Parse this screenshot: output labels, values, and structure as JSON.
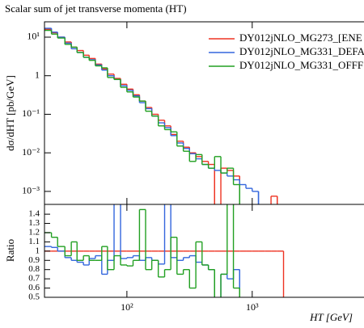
{
  "chart_data": {
    "type": "histogram",
    "title": "Scalar sum of jet transverse momenta (HT)",
    "xlabel": "HT [GeV]",
    "ylabel": "dσ/dHT [pb/GeV]",
    "x_log": true,
    "y_log": true,
    "legend": "upper right",
    "xlim": [
      22,
      40000
    ],
    "ylim": [
      0.00046,
      25
    ],
    "xticks": [
      {
        "value": 100,
        "label": "10²"
      },
      {
        "value": 1000,
        "label": "10³"
      }
    ],
    "yticks": [
      {
        "value": 0.001,
        "label": "10⁻³"
      },
      {
        "value": 0.01,
        "label": "10⁻²"
      },
      {
        "value": 0.1,
        "label": "10⁻¹"
      },
      1,
      {
        "value": 10,
        "label": "10¹"
      }
    ],
    "bins": [
      22,
      25,
      28,
      32,
      36,
      40,
      45,
      50,
      56,
      63,
      70,
      79,
      89,
      100,
      112,
      126,
      141,
      158,
      178,
      200,
      224,
      251,
      282,
      316,
      355,
      398,
      447,
      501,
      562,
      631,
      708,
      794,
      891,
      1000,
      1122,
      1259,
      1413,
      1585,
      1778
    ],
    "series": [
      {
        "name": "DY012jNLO_MG273_[ENE",
        "color": "#ee3322",
        "values": [
          16,
          13,
          10,
          7.5,
          5.5,
          4.5,
          3.4,
          2.8,
          2.0,
          1.5,
          1.1,
          0.85,
          0.6,
          0.45,
          0.32,
          0.22,
          0.15,
          0.1,
          0.07,
          0.05,
          0.03,
          0.02,
          0.014,
          0.01,
          0.008,
          0.006,
          0.005,
          null,
          0.004,
          0.0035,
          0.0025,
          null,
          null,
          null,
          null,
          null,
          0.00075,
          null
        ]
      },
      {
        "name": "DY012jNLO_MG331_DEFA",
        "color": "#3366dd",
        "values": [
          17,
          13.5,
          10,
          7,
          5,
          4,
          3,
          2.6,
          1.9,
          1.4,
          1.0,
          0.8,
          0.55,
          0.42,
          0.3,
          0.2,
          0.14,
          0.09,
          0.06,
          0.045,
          0.028,
          0.018,
          0.013,
          0.0095,
          0.007,
          0.005,
          0.004,
          0.0035,
          0.003,
          0.0025,
          0.002,
          0.0015,
          0.0012,
          0.001,
          null,
          null,
          null,
          null
        ]
      },
      {
        "name": "DY012jNLO_MG331_OFFF",
        "color": "#22a022",
        "values": [
          15,
          12,
          9.5,
          6.5,
          5.5,
          4,
          3,
          2.5,
          1.8,
          1.6,
          0.9,
          0.8,
          0.5,
          0.38,
          0.28,
          0.22,
          0.12,
          0.09,
          0.05,
          0.04,
          0.035,
          0.015,
          0.011,
          0.006,
          0.009,
          0.005,
          0.004,
          0.008,
          0.003,
          0.004,
          0.0015,
          null,
          null,
          null,
          null,
          null,
          null,
          null
        ]
      }
    ],
    "ratio": {
      "ylabel": "Ratio",
      "ylim": [
        0.5,
        1.506
      ],
      "yticks": [
        0.5,
        0.6,
        0.7,
        0.8,
        0.9,
        1,
        1.1,
        1.2,
        1.3,
        1.4
      ],
      "series": [
        {
          "color": "#ee3322",
          "values": [
            1,
            1,
            1,
            1,
            1,
            1,
            1,
            1,
            1,
            1,
            1,
            1,
            1,
            1,
            1,
            1,
            1,
            1,
            1,
            1,
            1,
            1,
            1,
            1,
            1,
            1,
            1,
            1,
            1,
            1,
            1,
            1,
            1,
            1,
            1,
            1,
            1,
            1
          ]
        },
        {
          "color": "#3366dd",
          "values": [
            1.05,
            1.04,
            1.0,
            0.93,
            0.9,
            0.88,
            0.85,
            0.92,
            0.95,
            0.75,
            0.9,
            1.6,
            0.92,
            0.93,
            0.95,
            0.9,
            0.93,
            0.9,
            0.86,
            1.6,
            0.93,
            0.9,
            0.93,
            0.95,
            0.88,
            0.85,
            0.8,
            null,
            0.75,
            0.7,
            0.8,
            null,
            null,
            null,
            null,
            null,
            null,
            null
          ]
        },
        {
          "color": "#22a022",
          "values": [
            1.2,
            1.15,
            1.05,
            0.95,
            1.1,
            0.9,
            0.95,
            0.9,
            0.9,
            1.05,
            0.8,
            0.95,
            0.85,
            0.84,
            0.9,
            1.45,
            0.8,
            0.9,
            0.72,
            0.8,
            1.15,
            0.75,
            0.8,
            0.6,
            1.1,
            0.85,
            0.8,
            null,
            0.75,
            1.6,
            0.6,
            null,
            null,
            null,
            null,
            null,
            null,
            null
          ]
        }
      ]
    }
  }
}
